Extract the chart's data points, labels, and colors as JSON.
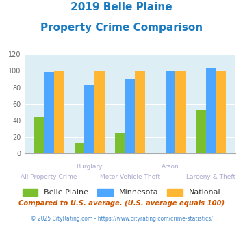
{
  "title_line1": "2019 Belle Plaine",
  "title_line2": "Property Crime Comparison",
  "title_color": "#1a7abf",
  "belle_plaine": [
    44,
    13,
    25,
    0,
    53
  ],
  "minnesota": [
    99,
    83,
    90,
    100,
    103
  ],
  "national": [
    100,
    100,
    100,
    100,
    100
  ],
  "belle_plaine_color": "#7abf2e",
  "minnesota_color": "#4da6ff",
  "national_color": "#ffb733",
  "bg_color": "#ddeef5",
  "ylim": [
    0,
    120
  ],
  "yticks": [
    0,
    20,
    40,
    60,
    80,
    100,
    120
  ],
  "legend_labels": [
    "Belle Plaine",
    "Minnesota",
    "National"
  ],
  "label_color": "#aaaacc",
  "footnote1": "Compared to U.S. average. (U.S. average equals 100)",
  "footnote2": "© 2025 CityRating.com - https://www.cityrating.com/crime-statistics/",
  "footnote1_color": "#cc5500",
  "footnote2_color": "#4488cc",
  "title_fontsize": 11,
  "bar_width": 0.25
}
